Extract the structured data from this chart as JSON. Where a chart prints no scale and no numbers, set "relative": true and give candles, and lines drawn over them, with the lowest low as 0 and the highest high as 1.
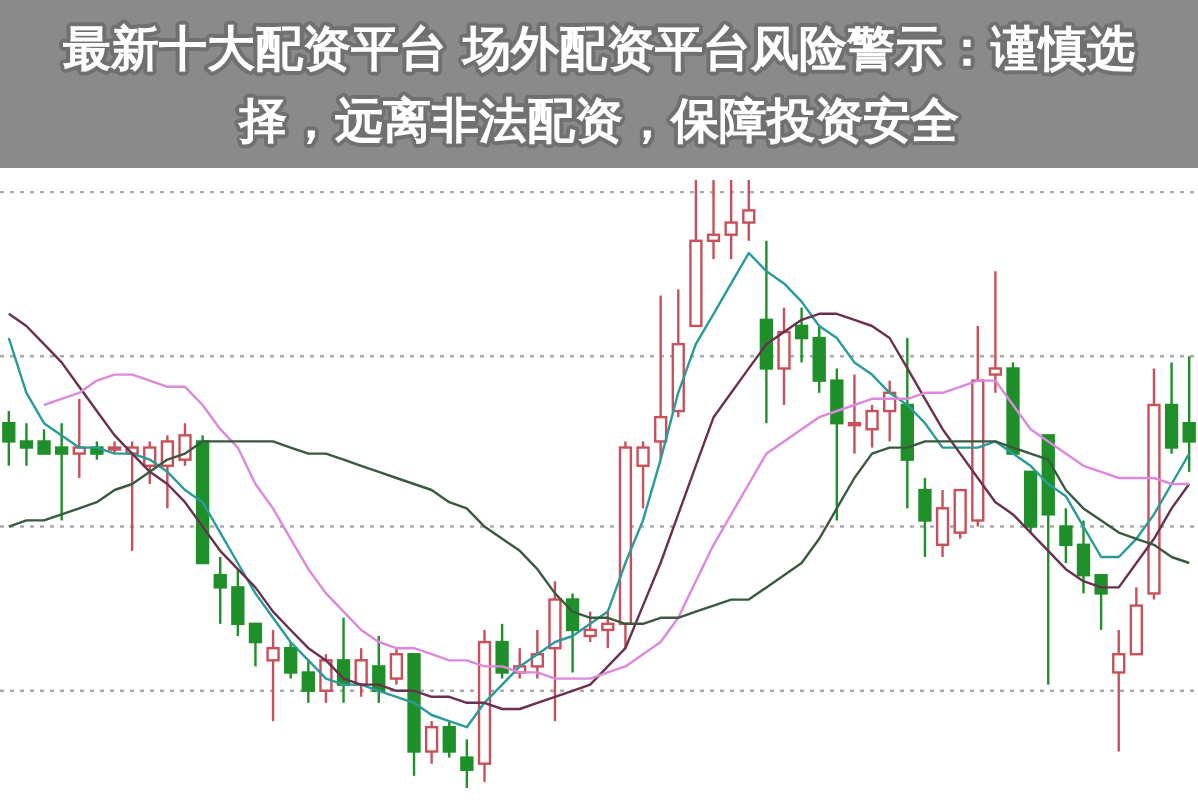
{
  "chart_data": {
    "type": "candlestick",
    "relative": true,
    "title": "最新十大配资平台 场外配资平台风险警示：谨慎选择，远离非法配资，保障投资安全",
    "categories": [
      null,
      null,
      null,
      null,
      null,
      null,
      null,
      null,
      null,
      null,
      null,
      null,
      null,
      null,
      null,
      null,
      null,
      null,
      null,
      null,
      null,
      null,
      null,
      null,
      null,
      null,
      null,
      null,
      null,
      null,
      null,
      null,
      null,
      null,
      null,
      null,
      null,
      null,
      null,
      null,
      null,
      null,
      null,
      null,
      null,
      null,
      null,
      null,
      null,
      null,
      null,
      null,
      null,
      null,
      null,
      null,
      null,
      null,
      null,
      null,
      null,
      null,
      null,
      null,
      null,
      null,
      null,
      null
    ],
    "ohlc": [
      [
        0.6,
        0.62,
        0.53,
        0.57
      ],
      [
        0.57,
        0.6,
        0.53,
        0.56
      ],
      [
        0.57,
        0.59,
        0.55,
        0.55
      ],
      [
        0.56,
        0.6,
        0.44,
        0.55
      ],
      [
        0.55,
        0.64,
        0.51,
        0.56
      ],
      [
        0.56,
        0.57,
        0.54,
        0.55
      ],
      [
        0.56,
        0.57,
        0.55,
        0.56
      ],
      [
        0.55,
        0.57,
        0.39,
        0.56
      ],
      [
        0.53,
        0.57,
        0.5,
        0.56
      ],
      [
        0.53,
        0.58,
        0.46,
        0.57
      ],
      [
        0.54,
        0.6,
        0.53,
        0.58
      ],
      [
        0.57,
        0.58,
        0.37,
        0.37
      ],
      [
        0.35,
        0.38,
        0.27,
        0.33
      ],
      [
        0.33,
        0.36,
        0.25,
        0.27
      ],
      [
        0.27,
        0.27,
        0.2,
        0.24
      ],
      [
        0.21,
        0.26,
        0.11,
        0.23
      ],
      [
        0.23,
        0.24,
        0.18,
        0.19
      ],
      [
        0.19,
        0.21,
        0.14,
        0.16
      ],
      [
        0.16,
        0.22,
        0.14,
        0.21
      ],
      [
        0.21,
        0.28,
        0.14,
        0.17
      ],
      [
        0.17,
        0.23,
        0.15,
        0.21
      ],
      [
        0.2,
        0.25,
        0.14,
        0.16
      ],
      [
        0.18,
        0.23,
        0.17,
        0.22
      ],
      [
        0.22,
        0.22,
        0.02,
        0.06
      ],
      [
        0.06,
        0.11,
        0.04,
        0.1
      ],
      [
        0.1,
        0.11,
        0.05,
        0.06
      ],
      [
        0.05,
        0.08,
        0,
        0.03
      ],
      [
        0.04,
        0.26,
        0.01,
        0.24
      ],
      [
        0.24,
        0.27,
        0.18,
        0.19
      ],
      [
        0.19,
        0.23,
        0.18,
        0.2
      ],
      [
        0.2,
        0.26,
        0.18,
        0.22
      ],
      [
        0.23,
        0.34,
        0.11,
        0.31
      ],
      [
        0.31,
        0.32,
        0.19,
        0.26
      ],
      [
        0.25,
        0.29,
        0.24,
        0.26
      ],
      [
        0.26,
        0.29,
        0.23,
        0.27
      ],
      [
        0.27,
        0.57,
        0.23,
        0.56
      ],
      [
        0.53,
        0.57,
        0.46,
        0.56
      ],
      [
        0.57,
        0.81,
        0.54,
        0.61
      ],
      [
        0.62,
        0.82,
        0.61,
        0.73
      ],
      [
        0.76,
        1,
        0.76,
        0.9
      ],
      [
        0.9,
        1,
        0.87,
        0.91
      ],
      [
        0.91,
        1,
        0.87,
        0.93
      ],
      [
        0.93,
        1,
        0.9,
        0.95
      ],
      [
        0.77,
        0.9,
        0.6,
        0.69
      ],
      [
        0.69,
        0.79,
        0.63,
        0.75
      ],
      [
        0.76,
        0.79,
        0.7,
        0.74
      ],
      [
        0.74,
        0.76,
        0.65,
        0.67
      ],
      [
        0.67,
        0.69,
        0.44,
        0.6
      ],
      [
        0.6,
        0.68,
        0.55,
        0.6
      ],
      [
        0.59,
        0.63,
        0.56,
        0.62
      ],
      [
        0.62,
        0.67,
        0.57,
        0.65
      ],
      [
        0.63,
        0.74,
        0.46,
        0.54
      ],
      [
        0.49,
        0.51,
        0.38,
        0.44
      ],
      [
        0.4,
        0.49,
        0.38,
        0.46
      ],
      [
        0.42,
        0.49,
        0.41,
        0.49
      ],
      [
        0.44,
        0.76,
        0.43,
        0.67
      ],
      [
        0.68,
        0.85,
        0.65,
        0.69
      ],
      [
        0.69,
        0.7,
        0.55,
        0.55
      ],
      [
        0.52,
        0.52,
        0.42,
        0.43
      ],
      [
        0.58,
        0.58,
        0.17,
        0.45
      ],
      [
        0.43,
        0.46,
        0.37,
        0.4
      ],
      [
        0.4,
        0.44,
        0.32,
        0.35
      ],
      [
        0.35,
        0.35,
        0.26,
        0.32
      ],
      [
        0.19,
        0.26,
        0.06,
        0.22
      ],
      [
        0.22,
        0.33,
        0.22,
        0.3
      ],
      [
        0.32,
        0.69,
        0.31,
        0.63
      ],
      [
        0.63,
        0.7,
        0.55,
        0.56
      ],
      [
        0.6,
        0.71,
        0.52,
        0.57
      ]
    ],
    "series": [
      {
        "type": "line",
        "color": "#2a9a9a",
        "values": [
          0.74,
          0.65,
          0.6,
          0.58,
          0.56,
          0.56,
          0.55,
          0.55,
          0.54,
          0.52,
          0.49,
          0.47,
          0.42,
          0.37,
          0.32,
          0.28,
          0.24,
          0.21,
          0.18,
          0.17,
          0.17,
          0.16,
          0.15,
          0.14,
          0.12,
          0.11,
          0.1,
          0.14,
          0.17,
          0.2,
          0.22,
          0.24,
          0.25,
          0.27,
          0.29,
          0.37,
          0.44,
          0.54,
          0.65,
          0.73,
          0.78,
          0.83,
          0.88,
          0.85,
          0.83,
          0.8,
          0.76,
          0.74,
          0.7,
          0.68,
          0.65,
          0.63,
          0.6,
          0.56,
          0.56,
          0.56,
          0.57,
          0.55,
          0.53,
          0.5,
          0.48,
          0.43,
          0.38,
          0.38,
          0.41,
          0.45,
          0.5,
          0.55
        ]
      },
      {
        "type": "line",
        "color": "#6a3050",
        "values": [
          0.78,
          0.76,
          0.73,
          0.7,
          0.66,
          0.62,
          0.58,
          0.55,
          0.52,
          0.5,
          0.47,
          0.43,
          0.39,
          0.36,
          0.33,
          0.29,
          0.26,
          0.23,
          0.21,
          0.18,
          0.17,
          0.17,
          0.16,
          0.16,
          0.15,
          0.15,
          0.14,
          0.14,
          0.13,
          0.13,
          0.14,
          0.15,
          0.16,
          0.17,
          0.2,
          0.23,
          0.3,
          0.37,
          0.45,
          0.53,
          0.61,
          0.65,
          0.69,
          0.73,
          0.75,
          0.77,
          0.78,
          0.78,
          0.77,
          0.76,
          0.74,
          0.69,
          0.64,
          0.59,
          0.55,
          0.51,
          0.47,
          0.45,
          0.42,
          0.39,
          0.36,
          0.34,
          0.33,
          0.33,
          0.37,
          0.41,
          0.46,
          0.5
        ]
      },
      {
        "type": "line",
        "color": "#dd88dd",
        "values": [
          null,
          null,
          0.63,
          0.64,
          0.65,
          0.67,
          0.68,
          0.68,
          0.67,
          0.66,
          0.66,
          0.63,
          0.59,
          0.56,
          0.5,
          0.46,
          0.41,
          0.36,
          0.32,
          0.29,
          0.26,
          0.24,
          0.23,
          0.23,
          0.22,
          0.21,
          0.21,
          0.2,
          0.2,
          0.19,
          0.19,
          0.18,
          0.18,
          0.18,
          0.19,
          0.2,
          0.22,
          0.24,
          0.28,
          0.34,
          0.4,
          0.45,
          0.5,
          0.55,
          0.57,
          0.59,
          0.61,
          0.62,
          0.63,
          0.64,
          0.64,
          0.64,
          0.65,
          0.65,
          0.66,
          0.67,
          0.67,
          0.63,
          0.59,
          0.57,
          0.55,
          0.53,
          0.52,
          0.51,
          0.51,
          0.51,
          0.5,
          0.5
        ]
      },
      {
        "type": "line",
        "color": "#3a5a40",
        "values": [
          0.43,
          0.44,
          0.44,
          0.45,
          0.46,
          0.47,
          0.49,
          0.5,
          0.52,
          0.54,
          0.55,
          0.57,
          0.57,
          0.57,
          0.57,
          0.57,
          0.56,
          0.55,
          0.55,
          0.54,
          0.53,
          0.52,
          0.51,
          0.5,
          0.49,
          0.47,
          0.46,
          0.43,
          0.41,
          0.39,
          0.36,
          0.32,
          0.29,
          0.28,
          0.28,
          0.27,
          0.27,
          0.28,
          0.28,
          0.29,
          0.3,
          0.31,
          0.31,
          0.33,
          0.35,
          0.37,
          0.41,
          0.46,
          0.51,
          0.55,
          0.56,
          0.56,
          0.57,
          0.57,
          0.57,
          0.57,
          0.57,
          0.56,
          0.55,
          0.54,
          0.49,
          0.46,
          0.44,
          0.42,
          0.41,
          0.4,
          0.38,
          0.37
        ]
      }
    ],
    "ref_lines": [
      {
        "axis": "y",
        "value": 0.98,
        "color": "#aaaaaa",
        "line_style": "dotted"
      },
      {
        "axis": "y",
        "value": 0.71,
        "color": "#aaaaaa",
        "line_style": "dotted"
      },
      {
        "axis": "y",
        "value": 0.43,
        "color": "#aaaaaa",
        "line_style": "dotted"
      },
      {
        "axis": "y",
        "value": 0.16,
        "color": "#aaaaaa",
        "line_style": "dotted"
      }
    ]
  }
}
